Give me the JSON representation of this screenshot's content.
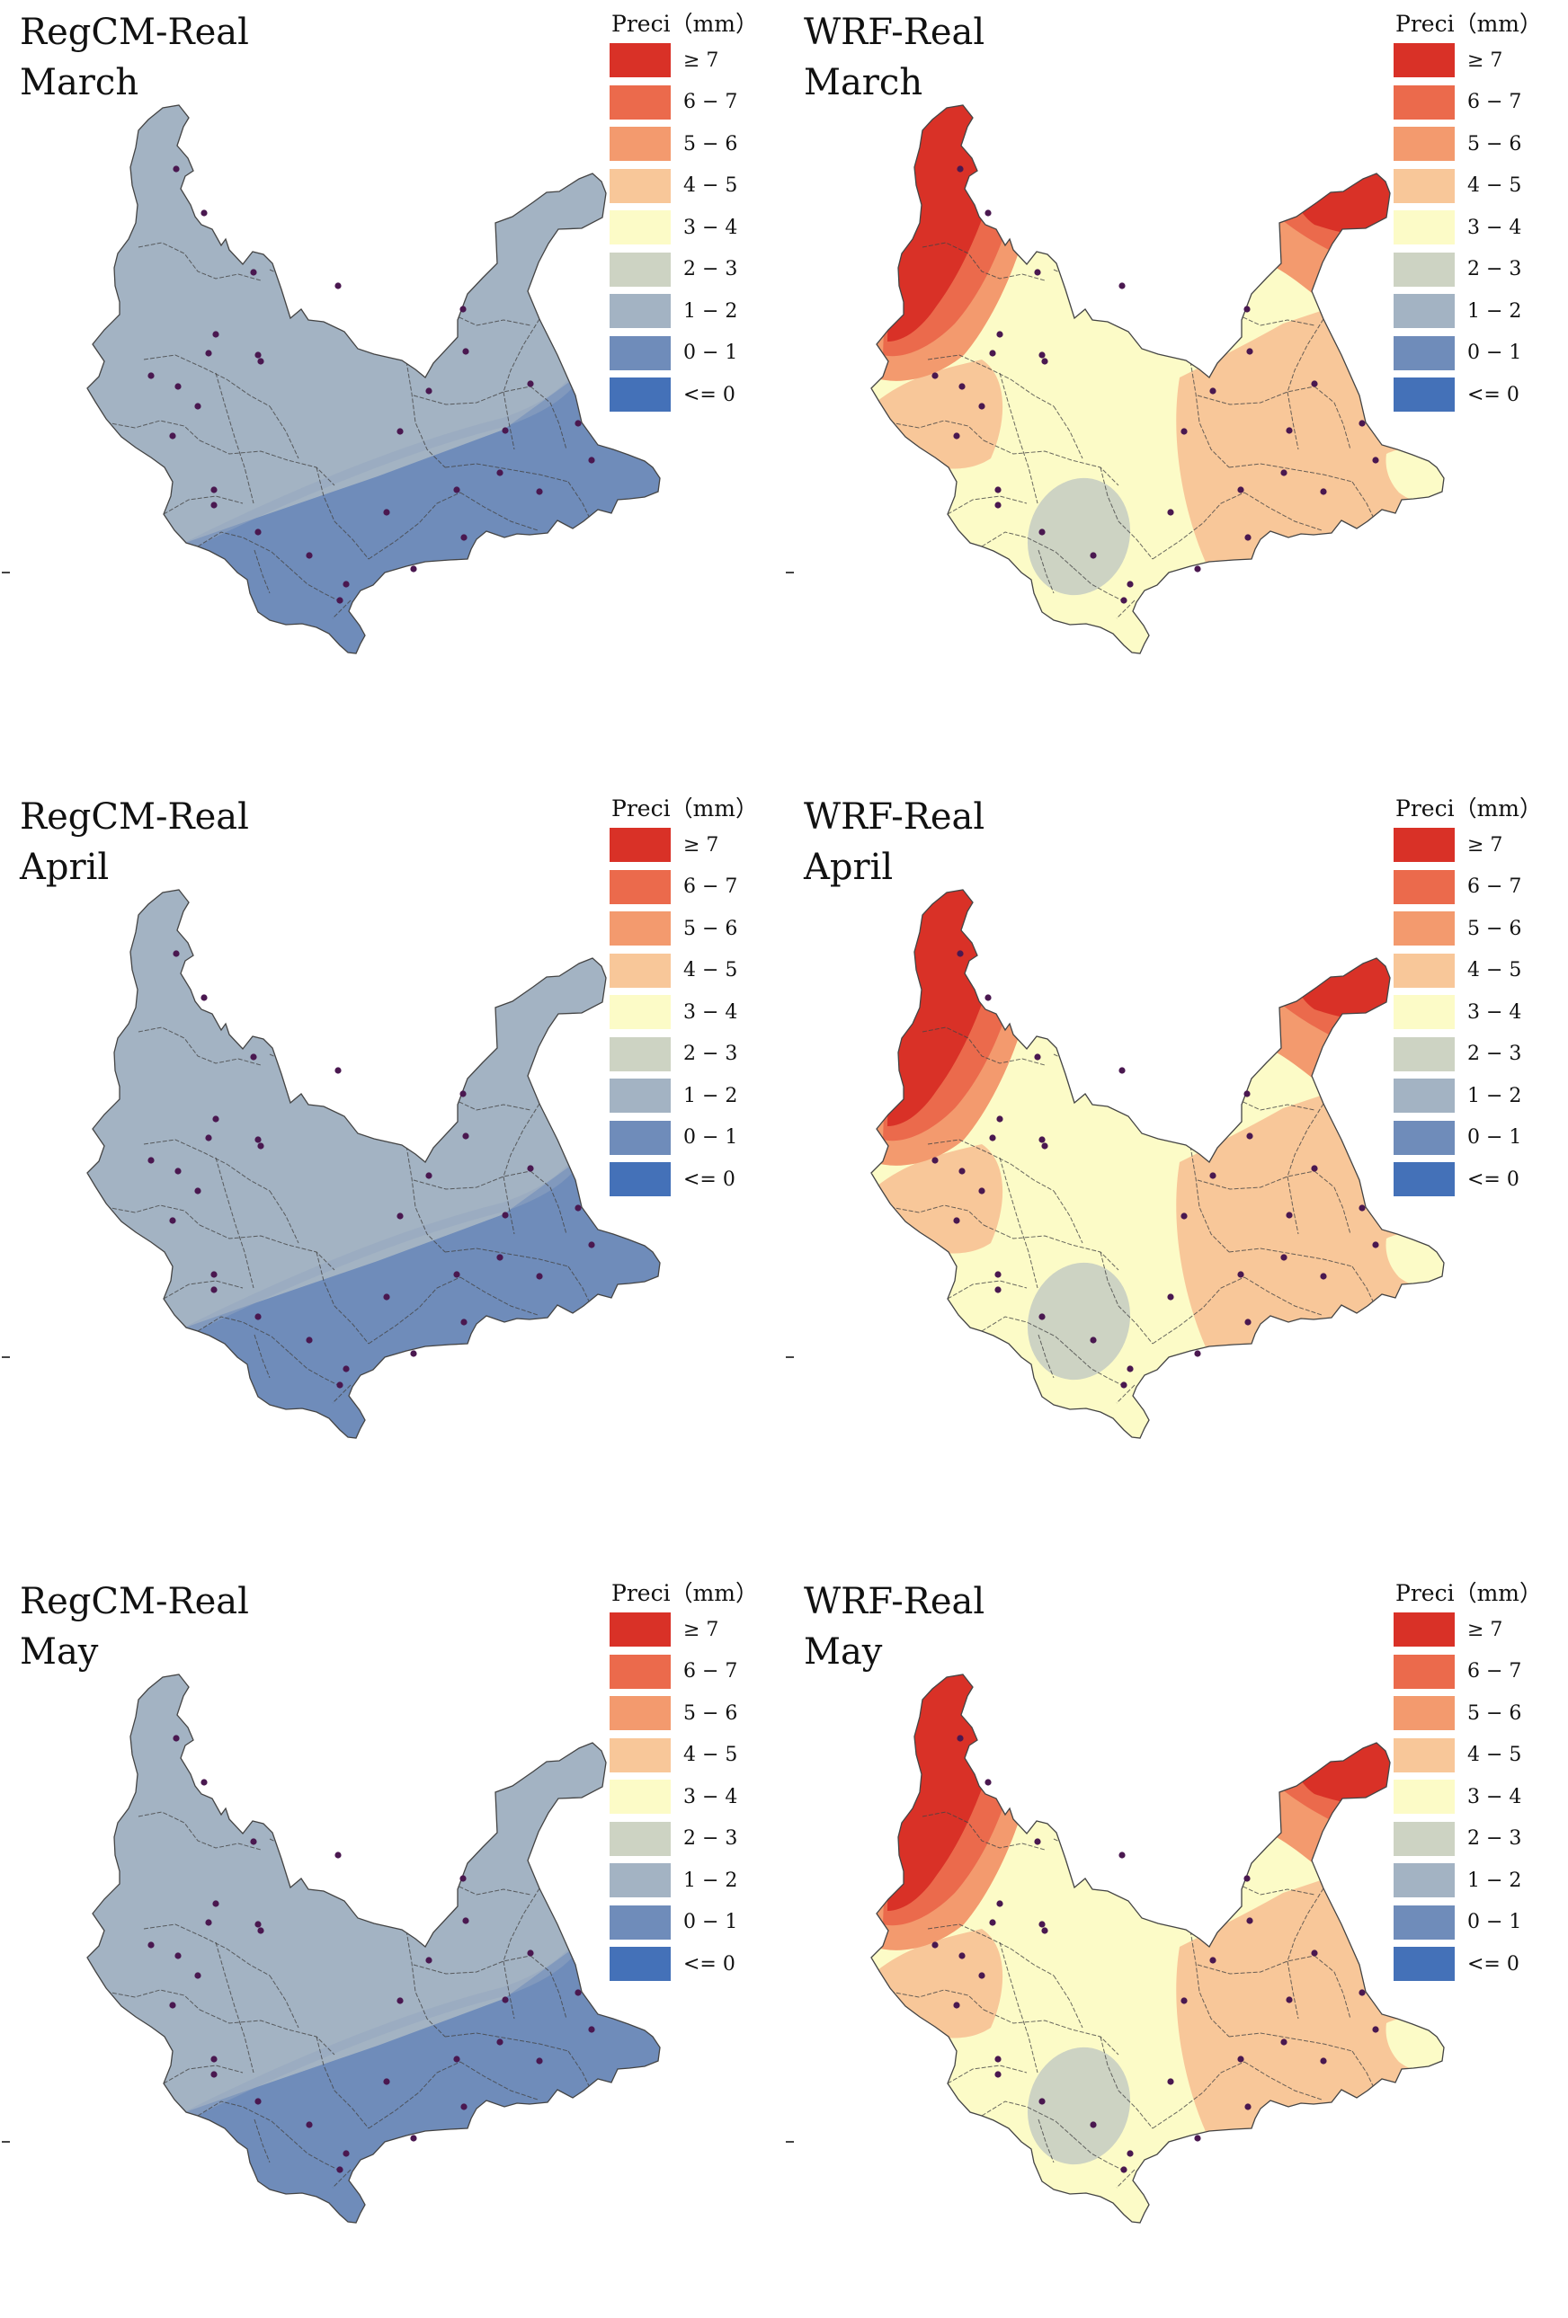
{
  "legend_title": "Preci（mm）",
  "legend_classes": [
    {
      "label": "≥ 7",
      "color": "#d93127"
    },
    {
      "label": "6 − 7",
      "color": "#eb6a4c"
    },
    {
      "label": "5 − 6",
      "color": "#f39a6e"
    },
    {
      "label": "4 − 5",
      "color": "#f8c799"
    },
    {
      "label": "3 − 4",
      "color": "#fcfbc7"
    },
    {
      "label": "2 − 3",
      "color": "#cdd3c3"
    },
    {
      "label": "1 − 2",
      "color": "#a3b3c3"
    },
    {
      "label": "0 − 1",
      "color": "#6f8cba"
    },
    {
      "label": "<= 0",
      "color": "#4471b8"
    }
  ],
  "boundary_color": "#444444",
  "station_color": "#4a1850",
  "panels": [
    {
      "model": "RegCM-Real",
      "month": "March",
      "scheme": "regcm"
    },
    {
      "model": "WRF-Real",
      "month": "March",
      "scheme": "wrf"
    },
    {
      "model": "RegCM-Real",
      "month": "April",
      "scheme": "regcm"
    },
    {
      "model": "WRF-Real",
      "month": "April",
      "scheme": "wrf"
    },
    {
      "model": "RegCM-Real",
      "month": "May",
      "scheme": "regcm"
    },
    {
      "model": "WRF-Real",
      "month": "May",
      "scheme": "wrf"
    }
  ]
}
